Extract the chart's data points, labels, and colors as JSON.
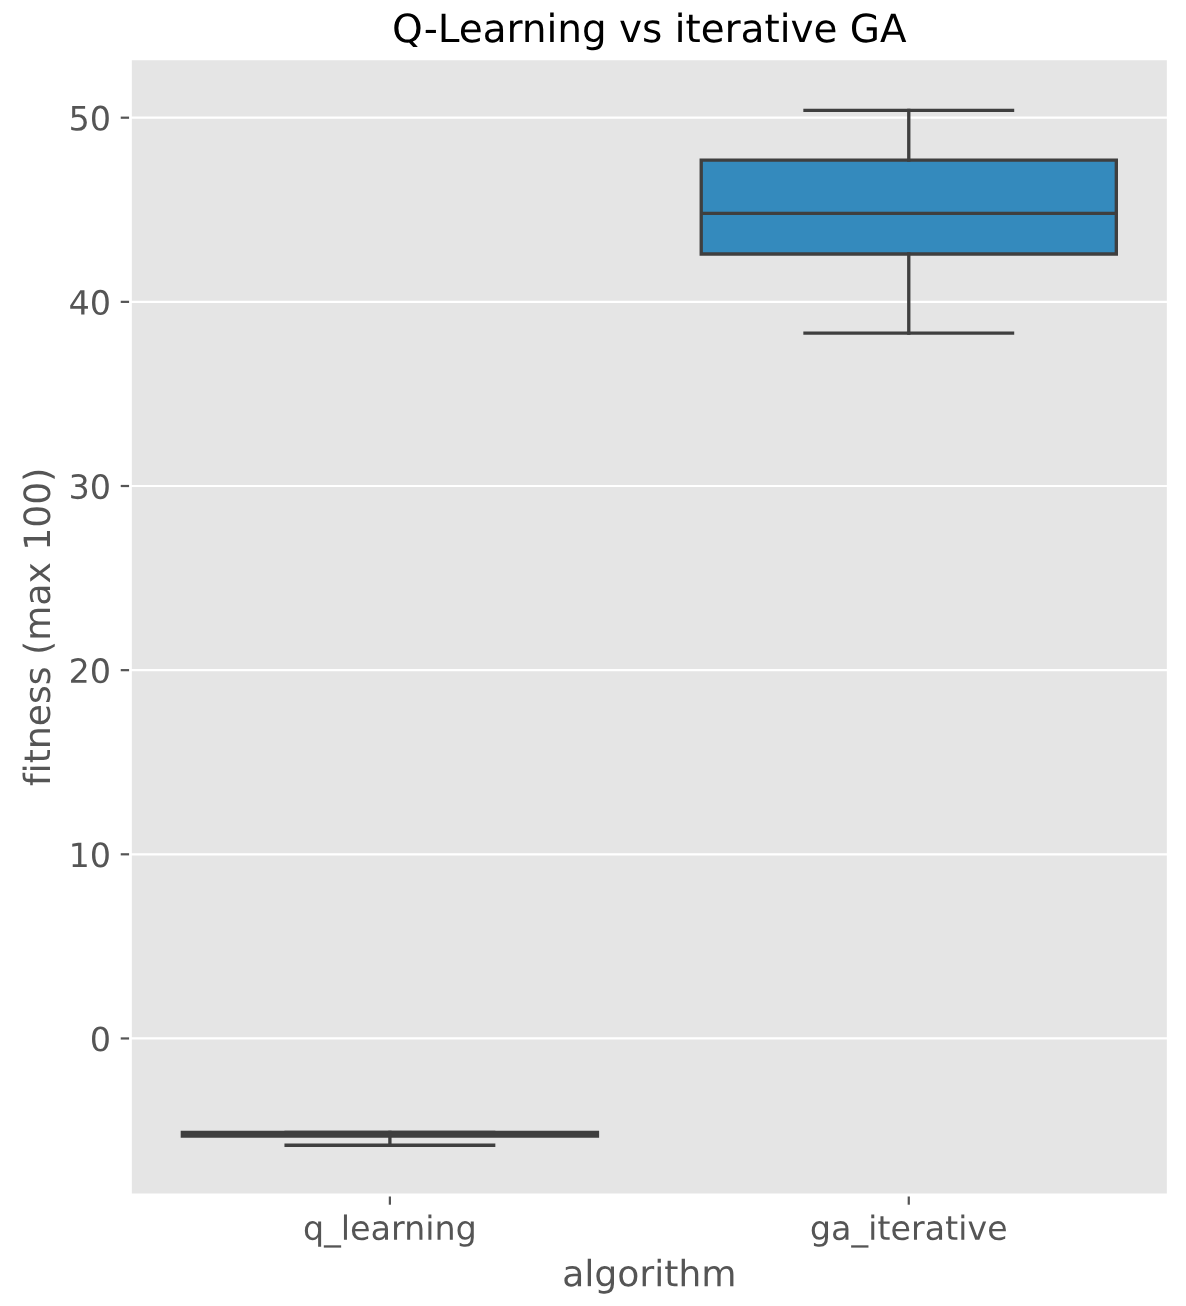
{
  "chart_data": {
    "type": "box",
    "title": "Q-Learning vs iterative GA",
    "xlabel": "algorithm",
    "ylabel": "fitness (max 100)",
    "categories": [
      "q_learning",
      "ga_iterative"
    ],
    "colors": [
      "#e24a33",
      "#348abd"
    ],
    "boxes": [
      {
        "low": -5.8,
        "q1": -5.3,
        "median": -5.2,
        "q3": -5.1,
        "high": -5.1
      },
      {
        "low": 38.3,
        "q1": 42.6,
        "median": 44.8,
        "q3": 47.7,
        "high": 50.4
      }
    ],
    "ylim": [
      -8.5,
      53.2
    ],
    "yticks": [
      0,
      10,
      20,
      30,
      40,
      50
    ],
    "grid": "y"
  }
}
